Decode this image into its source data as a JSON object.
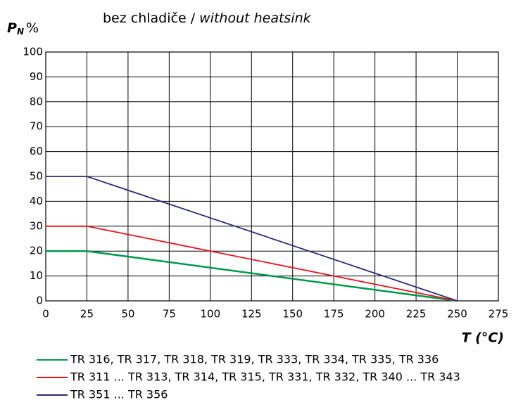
{
  "chart_data": {
    "type": "line",
    "title": "bez chladiče /",
    "title_en": "without heatsink",
    "ylabel": {
      "symbol": "P",
      "subscript": "N",
      "unit": "%"
    },
    "xlabel": "T (°C)",
    "x": [
      0,
      25,
      250
    ],
    "series": [
      {
        "name": "TR 316, TR 317, TR 318, TR 319, TR 333, TR 334, TR 335, TR 336",
        "color": "#009a4e",
        "values": [
          20,
          20,
          0
        ]
      },
      {
        "name": "TR 311 ... TR 313, TR 314, TR 315, TR 331, TR 332, TR 340 ... TR 343",
        "color": "#e3141b",
        "values": [
          30,
          30,
          0
        ]
      },
      {
        "name": "TR 351 ... TR 356",
        "color": "#2b2a7c",
        "values": [
          50,
          50,
          0
        ]
      }
    ],
    "xlim": [
      0,
      275
    ],
    "xticks": [
      0,
      25,
      50,
      75,
      100,
      125,
      150,
      175,
      200,
      225,
      250,
      275
    ],
    "ylim": [
      0,
      100
    ],
    "yticks": [
      0,
      10,
      20,
      30,
      40,
      50,
      60,
      70,
      80,
      90,
      100
    ],
    "grid": true
  }
}
